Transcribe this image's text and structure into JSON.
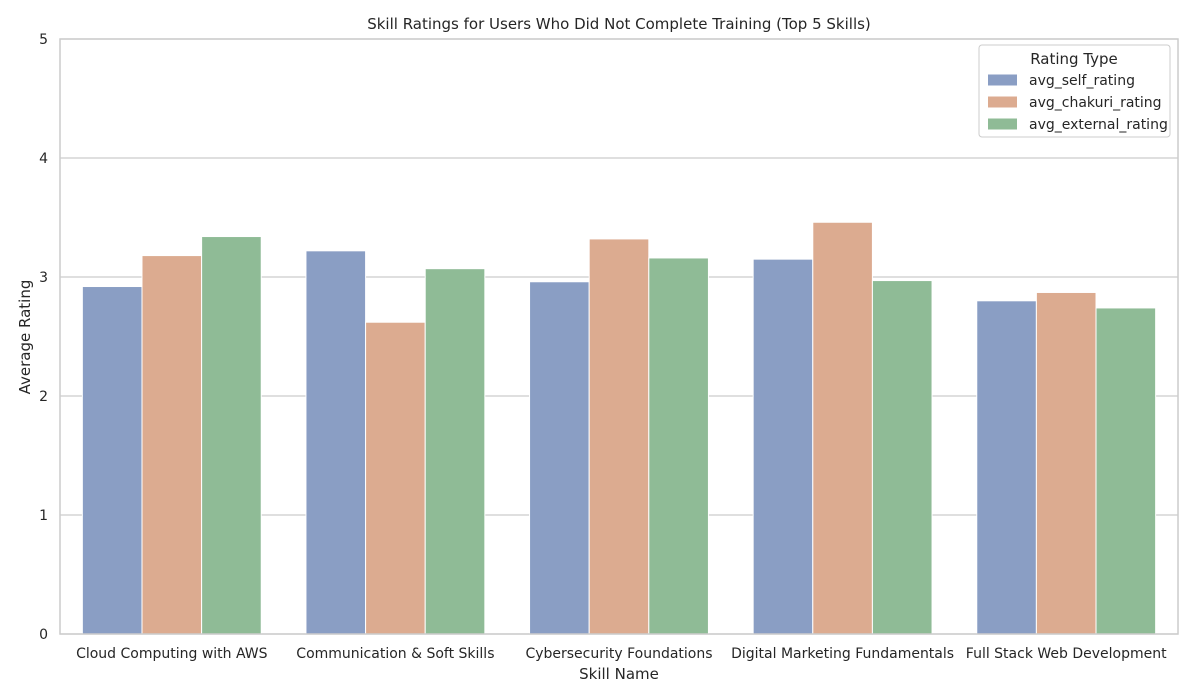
{
  "chart_data": {
    "type": "bar",
    "title": "Skill Ratings for Users Who Did Not Complete Training (Top 5 Skills)",
    "xlabel": "Skill Name",
    "ylabel": "Average Rating",
    "ylim": [
      0,
      5
    ],
    "yticks": [
      "0",
      "1",
      "2",
      "3",
      "4",
      "5"
    ],
    "grid": true,
    "legend_position": "top-right",
    "legend_title": "Rating Type",
    "categories": [
      "Cloud Computing with AWS",
      "Communication & Soft Skills",
      "Cybersecurity Foundations",
      "Digital Marketing Fundamentals",
      "Full Stack Web Development"
    ],
    "series": [
      {
        "name": "avg_self_rating",
        "color": "#8a9ec4",
        "values": [
          2.92,
          3.22,
          2.96,
          3.15,
          2.8
        ]
      },
      {
        "name": "avg_chakuri_rating",
        "color": "#dcab90",
        "values": [
          3.18,
          2.62,
          3.32,
          3.46,
          2.87
        ]
      },
      {
        "name": "avg_external_rating",
        "color": "#8fbb96",
        "values": [
          3.34,
          3.07,
          3.16,
          2.97,
          2.74
        ]
      }
    ]
  }
}
